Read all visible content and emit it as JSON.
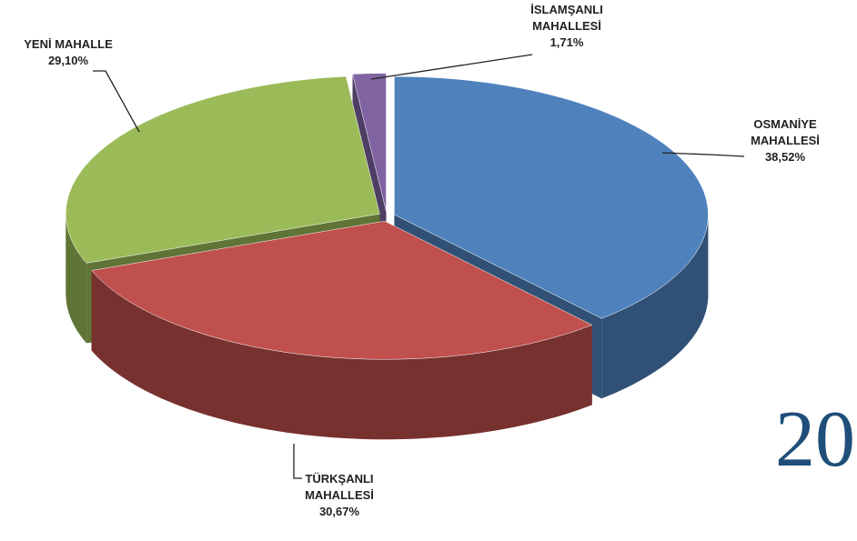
{
  "chart_data": {
    "type": "pie3d",
    "categories": [
      "OSMANİYE\nMAHALLESİ",
      "TÜRKŞANLI\nMAHALLESİ",
      "YENİ MAHALLE",
      "İSLAMŞANLI\nMAHALLESİ"
    ],
    "values": [
      38.52,
      30.67,
      29.1,
      1.71
    ],
    "value_labels": [
      "38,52%",
      "30,67%",
      "29,10%",
      "1,71%"
    ],
    "colors": [
      "#4f81bd",
      "#c0504d",
      "#9bbb59",
      "#8064a2"
    ],
    "logo_text": "20"
  }
}
